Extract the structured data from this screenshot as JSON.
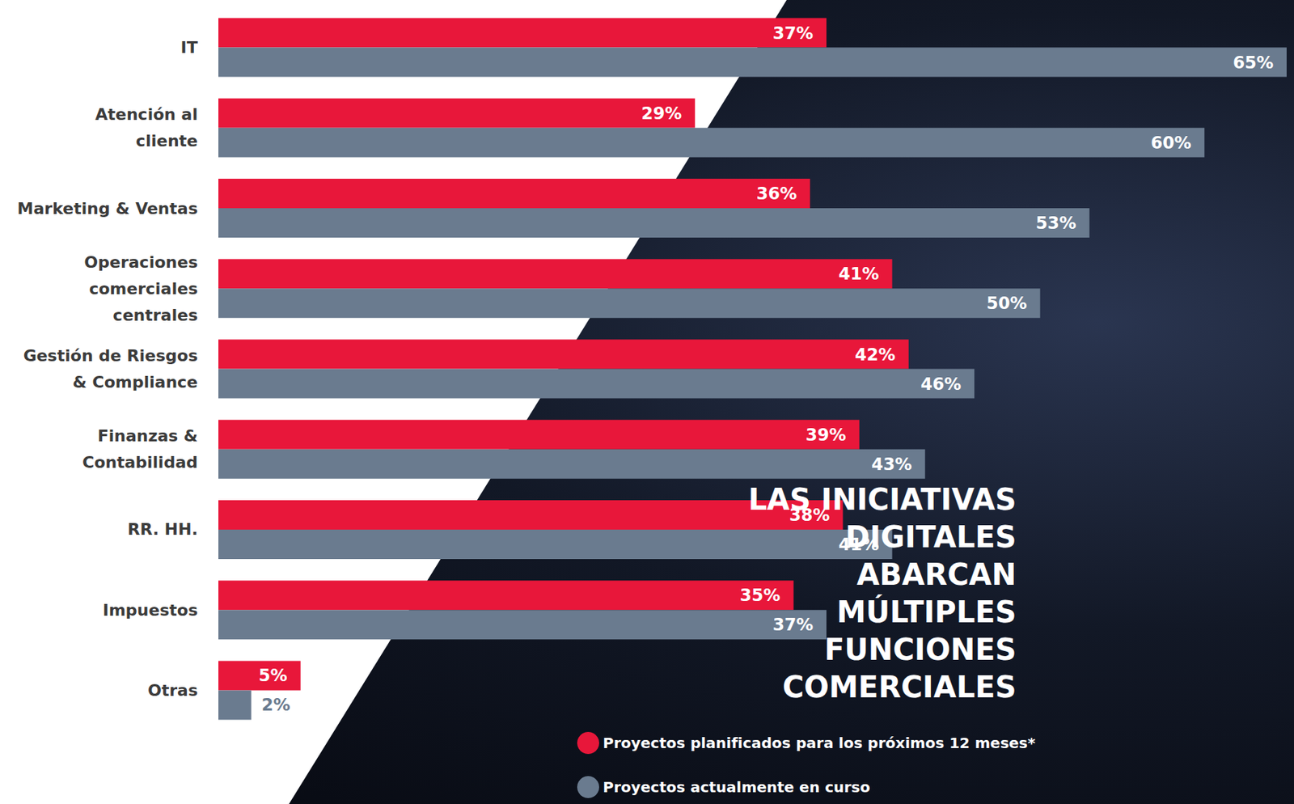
{
  "chart_data": {
    "type": "bar",
    "orientation": "horizontal",
    "title": "LAS INICIATIVAS DIGITALES ABARCAN MÚLTIPLES FUNCIONES COMERCIALES",
    "categories": [
      "IT",
      "Atención al cliente",
      "Marketing & Ventas",
      "Operaciones comerciales centrales",
      "Gestión de Riesgos & Compliance",
      "Finanzas & Contabilidad",
      "RR. HH.",
      "Impuestos",
      "Otras"
    ],
    "series": [
      {
        "name": "Proyectos planificados para los próximos 12 meses*",
        "color": "#e8173a",
        "values": [
          37,
          29,
          36,
          41,
          42,
          39,
          38,
          35,
          5
        ],
        "value_labels": [
          "37%",
          "29%",
          "36%",
          "41%",
          "42%",
          "39%",
          "38%",
          "35%",
          "5%"
        ]
      },
      {
        "name": "Proyectos actualmente en curso",
        "color": "#6a7b8f",
        "values": [
          65,
          60,
          53,
          50,
          46,
          43,
          41,
          37,
          2
        ],
        "value_labels": [
          "65%",
          "60%",
          "53%",
          "50%",
          "46%",
          "43%",
          "41%",
          "37%",
          "2%"
        ]
      }
    ],
    "xlim": [
      0,
      65
    ],
    "data_labels": true,
    "tick_labels": "y",
    "legend": "bottom",
    "grid": false
  }
}
